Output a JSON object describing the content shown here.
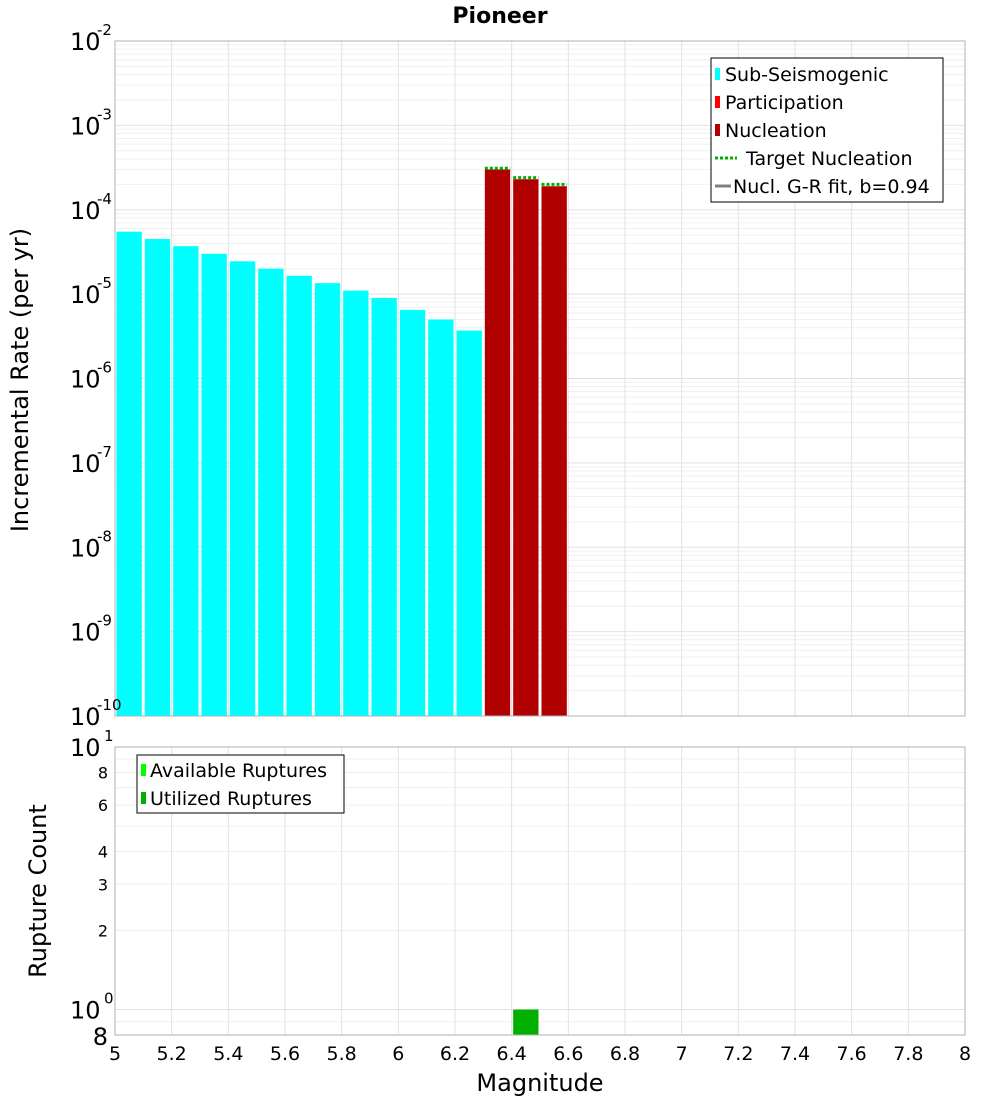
{
  "title": "Pioneer",
  "colors": {
    "sub_seismogenic": "#00ffff",
    "participation": "#ff0000",
    "nucleation": "#b00000",
    "target_nucleation": "#00b000",
    "gr_fit": "#808080",
    "available": "#00ff00",
    "utilized": "#00b000",
    "grid_major": "#e2e2e2",
    "grid_minor": "#f0f0f0"
  },
  "chart_data": [
    {
      "type": "bar",
      "ylabel": "Incremental Rate (per yr)",
      "y_scale": "log",
      "ylim": [
        1e-10,
        0.01
      ],
      "xlim": [
        5,
        8
      ],
      "y_ticks": [
        {
          "base": "10",
          "exp": "-10",
          "value": 1e-10
        },
        {
          "base": "10",
          "exp": "-9",
          "value": 1e-09
        },
        {
          "base": "10",
          "exp": "-8",
          "value": 1e-08
        },
        {
          "base": "10",
          "exp": "-7",
          "value": 1e-07
        },
        {
          "base": "10",
          "exp": "-6",
          "value": 1e-06
        },
        {
          "base": "10",
          "exp": "-5",
          "value": 1e-05
        },
        {
          "base": "10",
          "exp": "-4",
          "value": 0.0001
        },
        {
          "base": "10",
          "exp": "-3",
          "value": 0.001
        },
        {
          "base": "10",
          "exp": "-2",
          "value": 0.01
        }
      ],
      "legend_position": "top-right",
      "legend": [
        {
          "label": "Sub-Seismogenic",
          "kind": "bar",
          "color_key": "sub_seismogenic"
        },
        {
          "label": "Participation",
          "kind": "bar",
          "color_key": "participation"
        },
        {
          "label": "Nucleation",
          "kind": "bar",
          "color_key": "nucleation"
        },
        {
          "label": "Target Nucleation",
          "kind": "dotted",
          "color_key": "target_nucleation"
        },
        {
          "label": "Nucl. G-R fit, b=0.94",
          "kind": "line",
          "color_key": "gr_fit"
        }
      ],
      "series": [
        {
          "name": "Sub-Seismogenic",
          "x": [
            5.05,
            5.15,
            5.25,
            5.35,
            5.45,
            5.55,
            5.65,
            5.75,
            5.85,
            5.95,
            6.05,
            6.15,
            6.25
          ],
          "values": [
            5.5e-05,
            4.5e-05,
            3.7e-05,
            3e-05,
            2.45e-05,
            2e-05,
            1.65e-05,
            1.35e-05,
            1.1e-05,
            9e-06,
            6.5e-06,
            5e-06,
            3.7e-06
          ]
        },
        {
          "name": "Nucleation",
          "x": [
            6.35,
            6.45,
            6.55
          ],
          "values": [
            0.0003,
            0.00023,
            0.00019
          ]
        },
        {
          "name": "Target Nucleation",
          "x": [
            6.35,
            6.45,
            6.55
          ],
          "values": [
            0.00031,
            0.00024,
            0.0002
          ]
        }
      ]
    },
    {
      "type": "bar",
      "xlabel": "Magnitude",
      "ylabel": "Rupture Count",
      "y_scale": "log",
      "ylim": [
        0.8,
        10
      ],
      "xlim": [
        5,
        8
      ],
      "x_ticks": [
        "5",
        "5.2",
        "5.4",
        "5.6",
        "5.8",
        "6",
        "6.2",
        "6.4",
        "6.6",
        "6.8",
        "7",
        "7.2",
        "7.4",
        "7.6",
        "7.8",
        "8"
      ],
      "y_major_ticks": [
        {
          "base": "10",
          "exp": "0",
          "value": 1
        },
        {
          "base": "10",
          "exp": "1",
          "value": 10
        }
      ],
      "y_minor_ticks": [
        {
          "label": "8",
          "value": 0.8
        },
        {
          "label": "2",
          "value": 2
        },
        {
          "label": "3",
          "value": 3
        },
        {
          "label": "4",
          "value": 4
        },
        {
          "label": "6",
          "value": 6
        },
        {
          "label": "8",
          "value": 8
        }
      ],
      "legend_position": "top-left",
      "legend": [
        {
          "label": "Available Ruptures",
          "kind": "bar",
          "color_key": "available"
        },
        {
          "label": "Utilized Ruptures",
          "kind": "bar",
          "color_key": "utilized"
        }
      ],
      "series": [
        {
          "name": "Utilized Ruptures",
          "x": [
            6.45
          ],
          "values": [
            1
          ]
        }
      ]
    }
  ]
}
